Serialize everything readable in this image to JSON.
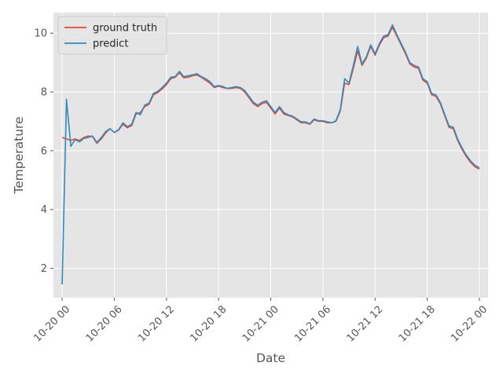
{
  "chart_data": {
    "type": "line",
    "title": "",
    "xlabel": "Date",
    "ylabel": "Temperature",
    "x_unit": "hours",
    "xlim": [
      -1.0,
      49.0
    ],
    "ylim": [
      1.0,
      10.7
    ],
    "x_ticks": [
      {
        "value": 0,
        "label": "10-20 00"
      },
      {
        "value": 6,
        "label": "10-20 06"
      },
      {
        "value": 12,
        "label": "10-20 12"
      },
      {
        "value": 18,
        "label": "10-20 18"
      },
      {
        "value": 24,
        "label": "10-21 00"
      },
      {
        "value": 30,
        "label": "10-21 06"
      },
      {
        "value": 36,
        "label": "10-21 12"
      },
      {
        "value": 42,
        "label": "10-21 18"
      },
      {
        "value": 48,
        "label": "10-22 00"
      }
    ],
    "y_ticks": [
      2,
      4,
      6,
      8,
      10
    ],
    "grid": true,
    "legend_position": "top-left",
    "colors": {
      "ground_truth": "#E24A33",
      "predict": "#348ABD",
      "background": "#E5E5E5",
      "grid": "#FFFFFF"
    },
    "x": [
      0,
      0.5,
      1,
      1.5,
      2,
      2.5,
      3,
      3.5,
      4,
      4.5,
      5,
      5.5,
      6,
      6.5,
      7,
      7.5,
      8,
      8.5,
      9,
      9.5,
      10,
      10.5,
      11,
      11.5,
      12,
      12.5,
      13,
      13.5,
      14,
      14.5,
      15,
      15.5,
      16,
      16.5,
      17,
      17.5,
      18,
      18.5,
      19,
      19.5,
      20,
      20.5,
      21,
      21.5,
      22,
      22.5,
      23,
      23.5,
      24,
      24.5,
      25,
      25.5,
      26,
      26.5,
      27,
      27.5,
      28,
      28.5,
      29,
      29.5,
      30,
      30.5,
      31,
      31.5,
      32,
      32.5,
      33,
      33.5,
      34,
      34.5,
      35,
      35.5,
      36,
      36.5,
      37,
      37.5,
      38,
      38.5,
      39,
      39.5,
      40,
      40.5,
      41,
      41.5,
      42,
      42.5,
      43,
      43.5,
      44,
      44.5,
      45,
      45.5,
      46,
      46.5,
      47,
      47.5,
      48
    ],
    "series": [
      {
        "name": "ground truth",
        "color": "#E24A33",
        "values": [
          6.45,
          6.4,
          6.35,
          6.4,
          6.35,
          6.45,
          6.5,
          6.48,
          6.25,
          6.4,
          6.6,
          6.75,
          6.62,
          6.7,
          6.9,
          6.78,
          6.85,
          7.25,
          7.3,
          7.5,
          7.58,
          7.9,
          7.98,
          8.1,
          8.25,
          8.45,
          8.5,
          8.65,
          8.48,
          8.5,
          8.55,
          8.58,
          8.5,
          8.4,
          8.3,
          8.15,
          8.2,
          8.15,
          8.12,
          8.12,
          8.15,
          8.12,
          8.0,
          7.8,
          7.6,
          7.5,
          7.6,
          7.65,
          7.45,
          7.25,
          7.45,
          7.25,
          7.2,
          7.15,
          7.05,
          6.95,
          6.95,
          6.9,
          7.05,
          7.0,
          7.0,
          6.95,
          6.95,
          7.0,
          7.35,
          8.3,
          8.25,
          8.8,
          9.4,
          8.9,
          9.15,
          9.55,
          9.25,
          9.6,
          9.85,
          9.9,
          10.2,
          9.9,
          9.6,
          9.3,
          8.95,
          8.85,
          8.8,
          8.4,
          8.3,
          7.9,
          7.85,
          7.6,
          7.2,
          6.8,
          6.75,
          6.35,
          6.05,
          5.8,
          5.6,
          5.45,
          5.38
        ]
      },
      {
        "name": "predict",
        "color": "#348ABD",
        "values": [
          1.45,
          7.75,
          6.15,
          6.38,
          6.3,
          6.42,
          6.45,
          6.5,
          6.28,
          6.45,
          6.65,
          6.75,
          6.62,
          6.72,
          6.95,
          6.82,
          6.9,
          7.3,
          7.22,
          7.55,
          7.62,
          7.95,
          8.02,
          8.15,
          8.3,
          8.5,
          8.52,
          8.7,
          8.52,
          8.55,
          8.58,
          8.62,
          8.52,
          8.45,
          8.35,
          8.18,
          8.22,
          8.18,
          8.12,
          8.15,
          8.18,
          8.15,
          8.05,
          7.85,
          7.65,
          7.55,
          7.65,
          7.7,
          7.5,
          7.3,
          7.5,
          7.3,
          7.22,
          7.18,
          7.08,
          6.98,
          6.98,
          6.92,
          7.08,
          7.02,
          7.02,
          6.98,
          6.95,
          7.02,
          7.4,
          8.45,
          8.3,
          8.9,
          9.55,
          8.95,
          9.2,
          9.6,
          9.3,
          9.65,
          9.9,
          9.95,
          10.28,
          9.95,
          9.65,
          9.35,
          9.0,
          8.9,
          8.85,
          8.45,
          8.35,
          7.95,
          7.9,
          7.65,
          7.25,
          6.85,
          6.8,
          6.4,
          6.1,
          5.85,
          5.65,
          5.5,
          5.42
        ]
      }
    ]
  }
}
